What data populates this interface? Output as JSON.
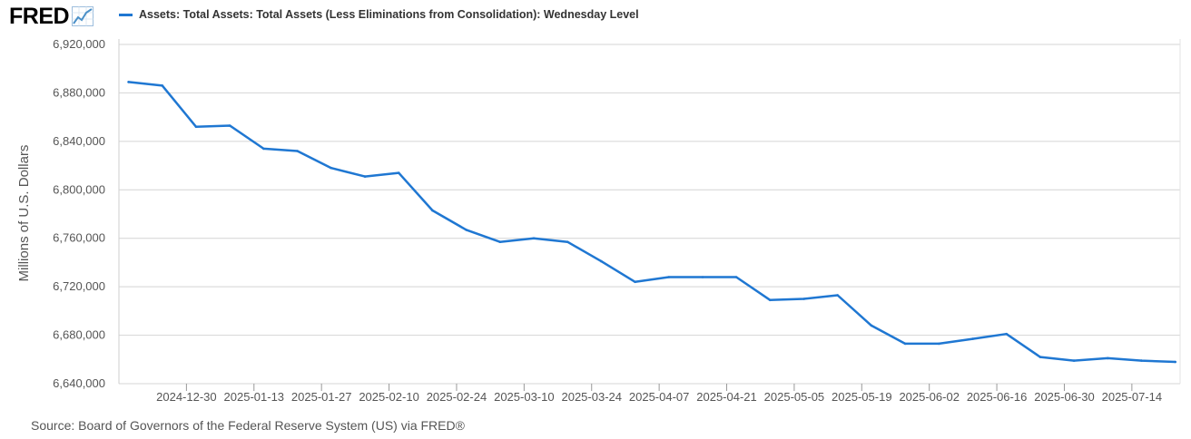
{
  "logo": {
    "text": "FRED",
    "icon": "trend-line-icon"
  },
  "legend": {
    "label": "Assets: Total Assets: Total Assets (Less Eliminations from Consolidation): Wednesday Level"
  },
  "source": "Source: Board of Governors of the Federal Reserve System (US) via FRED®",
  "colors": {
    "line": "#1f77d2",
    "grid": "#d4d4d4",
    "axis": "#555555",
    "logo_icon": "#4a90c8"
  },
  "chart_data": {
    "type": "line",
    "title": "",
    "xlabel": "",
    "ylabel": "Millions of U.S. Dollars",
    "ylim": [
      6640000,
      6920000
    ],
    "yticks": [
      6640000,
      6680000,
      6720000,
      6760000,
      6800000,
      6840000,
      6880000,
      6920000
    ],
    "ytick_labels": [
      "6,640,000",
      "6,680,000",
      "6,720,000",
      "6,760,000",
      "6,800,000",
      "6,840,000",
      "6,880,000",
      "6,920,000"
    ],
    "xlim": [
      "2024-12-16",
      "2025-07-24"
    ],
    "xticks": [
      "2024-12-30",
      "2025-01-13",
      "2025-01-27",
      "2025-02-10",
      "2025-02-24",
      "2025-03-10",
      "2025-03-24",
      "2025-04-07",
      "2025-04-21",
      "2025-05-05",
      "2025-05-19",
      "2025-06-02",
      "2025-06-16",
      "2025-06-30",
      "2025-07-14"
    ],
    "grid": true,
    "series": [
      {
        "name": "Assets: Total Assets: Total Assets (Less Eliminations from Consolidation): Wednesday Level",
        "x": [
          "2024-12-18",
          "2024-12-25",
          "2025-01-01",
          "2025-01-08",
          "2025-01-15",
          "2025-01-22",
          "2025-01-29",
          "2025-02-05",
          "2025-02-12",
          "2025-02-19",
          "2025-02-26",
          "2025-03-05",
          "2025-03-12",
          "2025-03-19",
          "2025-03-26",
          "2025-04-02",
          "2025-04-09",
          "2025-04-16",
          "2025-04-23",
          "2025-04-30",
          "2025-05-07",
          "2025-05-14",
          "2025-05-21",
          "2025-05-28",
          "2025-06-04",
          "2025-06-11",
          "2025-06-18",
          "2025-06-25",
          "2025-07-02",
          "2025-07-09",
          "2025-07-16",
          "2025-07-23"
        ],
        "values": [
          6889000,
          6886000,
          6852000,
          6853000,
          6834000,
          6832000,
          6818000,
          6811000,
          6814000,
          6783000,
          6767000,
          6757000,
          6760000,
          6757000,
          6741000,
          6724000,
          6728000,
          6728000,
          6728000,
          6709000,
          6710000,
          6713000,
          6688000,
          6673000,
          6673000,
          6677000,
          6681000,
          6662000,
          6659000,
          6661000,
          6659000,
          6658000
        ]
      }
    ]
  }
}
